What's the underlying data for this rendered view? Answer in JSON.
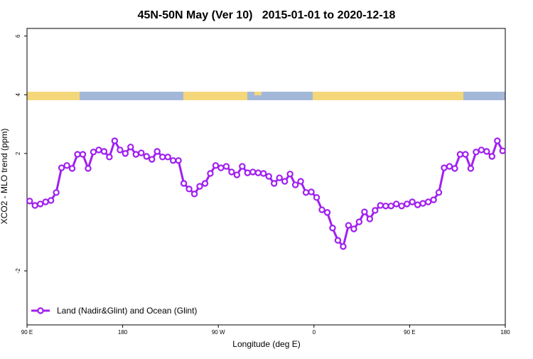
{
  "chart_data": {
    "type": "line",
    "title": "45N-50N May (Ver 10)   2015-01-01 to 2020-12-18",
    "x_label": "Longitude (deg E)",
    "y_label": "XCO2 - MLO trend (ppm)",
    "xlim": [
      90,
      540
    ],
    "xticks": [
      {
        "value": 90,
        "label": "90 E"
      },
      180,
      {
        "value": 270,
        "label": "90 W"
      },
      {
        "value": 360,
        "label": "0"
      },
      {
        "value": 450,
        "label": "90 E"
      },
      {
        "value": 540,
        "label": "180"
      }
    ],
    "ylim": [
      -3.84,
      6.26
    ],
    "yticks": [
      -2,
      2,
      4,
      6
    ],
    "legend": "bottom-left",
    "x": [
      92.5,
      97.5,
      102.5,
      107.5,
      112.5,
      117.5,
      122.5,
      127.5,
      132.5,
      137.5,
      142.5,
      147.5,
      152.5,
      157.5,
      162.5,
      167.5,
      172.5,
      177.5,
      182.5,
      187.5,
      192.5,
      197.5,
      202.5,
      207.5,
      212.5,
      217.5,
      222.5,
      227.5,
      232.5,
      237.5,
      242.5,
      247.5,
      252.5,
      257.5,
      262.5,
      267.5,
      272.5,
      277.5,
      282.5,
      287.5,
      292.5,
      297.5,
      302.5,
      307.5,
      312.5,
      317.5,
      322.5,
      327.5,
      332.5,
      337.5,
      342.5,
      347.5,
      352.5,
      357.5,
      362.5,
      367.5,
      372.5,
      377.5,
      382.5,
      387.5,
      392.5,
      397.5,
      402.5,
      407.5,
      412.5,
      417.5,
      422.5,
      427.5,
      432.5,
      437.5,
      442.5,
      447.5,
      452.5,
      457.5,
      462.5,
      467.5,
      472.5,
      477.5,
      482.5,
      487.5,
      492.5,
      497.5,
      502.5,
      507.5,
      512.5,
      517.5,
      522.5,
      527.5,
      532.5,
      537.5
    ],
    "series": [
      {
        "name": "Land (Nadir&Glint) and Ocean (Glint)",
        "color": "#a020f0",
        "values": [
          0.38,
          0.23,
          0.28,
          0.35,
          0.4,
          0.67,
          1.51,
          1.59,
          1.49,
          1.97,
          1.97,
          1.49,
          2.05,
          2.12,
          2.07,
          1.88,
          2.43,
          2.12,
          2.0,
          2.22,
          1.97,
          2.02,
          1.9,
          1.8,
          2.07,
          1.88,
          1.88,
          1.76,
          1.76,
          0.98,
          0.79,
          0.62,
          0.88,
          0.98,
          1.32,
          1.59,
          1.51,
          1.56,
          1.37,
          1.27,
          1.56,
          1.34,
          1.37,
          1.34,
          1.32,
          1.22,
          0.98,
          1.17,
          1.05,
          1.3,
          0.93,
          1.05,
          0.67,
          0.69,
          0.5,
          0.08,
          -0.01,
          -0.54,
          -0.96,
          -1.17,
          -0.45,
          -0.57,
          -0.33,
          0.01,
          -0.23,
          0.06,
          0.23,
          0.21,
          0.21,
          0.28,
          0.21,
          0.28,
          0.35,
          0.25,
          0.3,
          0.35,
          0.42,
          0.67,
          1.51,
          1.56,
          1.49,
          1.97,
          1.97,
          1.49,
          2.05,
          2.12,
          2.07,
          1.9,
          2.43,
          2.09
        ]
      }
    ]
  }
}
